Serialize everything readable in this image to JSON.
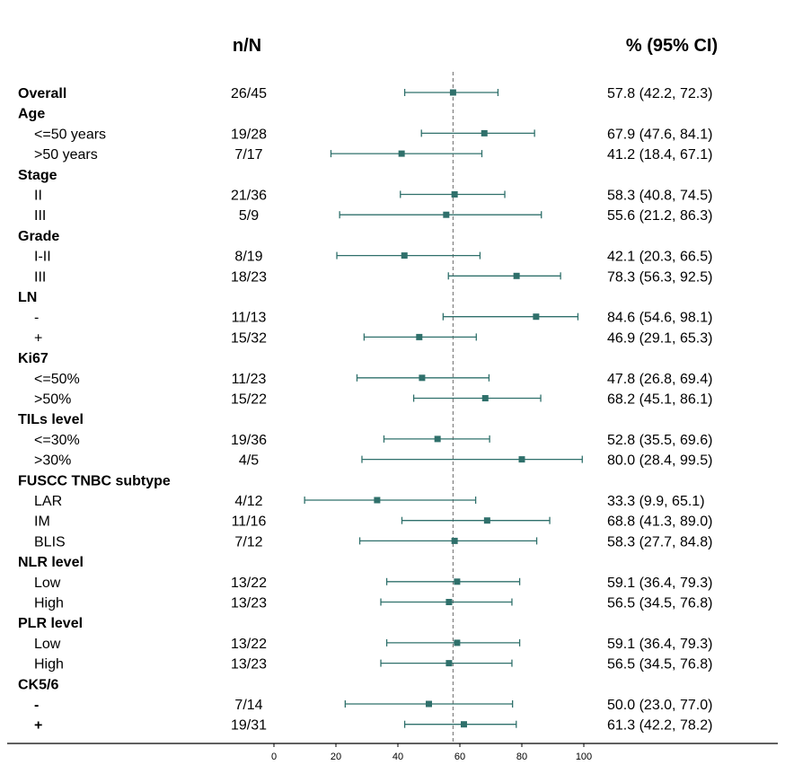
{
  "chart_data": {
    "type": "forest",
    "columns": {
      "n_header": "n/N",
      "ci_header": "% (95% CI)"
    },
    "x_axis": {
      "ticks": [
        "0",
        "20",
        "40",
        "60",
        "80",
        "100"
      ],
      "range": [
        0,
        100
      ]
    },
    "reference_line": 57.8,
    "marker_color": "#2f706b",
    "rows": [
      {
        "label": "Overall",
        "group": true,
        "n": "26/45",
        "est": 57.8,
        "lo": 42.2,
        "hi": 72.3,
        "ci": "57.8 (42.2, 72.3)"
      },
      {
        "label": "Age",
        "group": true
      },
      {
        "label": "<=50 years",
        "n": "19/28",
        "est": 67.9,
        "lo": 47.6,
        "hi": 84.1,
        "ci": "67.9 (47.6, 84.1)"
      },
      {
        "label": ">50 years",
        "n": "7/17",
        "est": 41.2,
        "lo": 18.4,
        "hi": 67.1,
        "ci": "41.2 (18.4, 67.1)"
      },
      {
        "label": "Stage",
        "group": true
      },
      {
        "label": "II",
        "n": "21/36",
        "est": 58.3,
        "lo": 40.8,
        "hi": 74.5,
        "ci": "58.3 (40.8, 74.5)"
      },
      {
        "label": "III",
        "n": "5/9",
        "est": 55.6,
        "lo": 21.2,
        "hi": 86.3,
        "ci": "55.6 (21.2, 86.3)"
      },
      {
        "label": "Grade",
        "group": true
      },
      {
        "label": "I-II",
        "n": "8/19",
        "est": 42.1,
        "lo": 20.3,
        "hi": 66.5,
        "ci": "42.1 (20.3, 66.5)"
      },
      {
        "label": "III",
        "n": "18/23",
        "est": 78.3,
        "lo": 56.3,
        "hi": 92.5,
        "ci": "78.3 (56.3, 92.5)"
      },
      {
        "label": "LN",
        "group": true
      },
      {
        "label": "-",
        "n": "11/13",
        "est": 84.6,
        "lo": 54.6,
        "hi": 98.1,
        "ci": "84.6 (54.6, 98.1)"
      },
      {
        "label": "+",
        "n": "15/32",
        "est": 46.9,
        "lo": 29.1,
        "hi": 65.3,
        "ci": "46.9 (29.1, 65.3)"
      },
      {
        "label": "Ki67",
        "group": true
      },
      {
        "label": "<=50%",
        "n": "11/23",
        "est": 47.8,
        "lo": 26.8,
        "hi": 69.4,
        "ci": "47.8 (26.8, 69.4)"
      },
      {
        "label": ">50%",
        "n": "15/22",
        "est": 68.2,
        "lo": 45.1,
        "hi": 86.1,
        "ci": "68.2 (45.1, 86.1)"
      },
      {
        "label": "TILs level",
        "group": true
      },
      {
        "label": "<=30%",
        "n": "19/36",
        "est": 52.8,
        "lo": 35.5,
        "hi": 69.6,
        "ci": "52.8 (35.5, 69.6)"
      },
      {
        "label": ">30%",
        "n": "4/5",
        "est": 80.0,
        "lo": 28.4,
        "hi": 99.5,
        "ci": "80.0 (28.4, 99.5)"
      },
      {
        "label": "FUSCC TNBC subtype",
        "group": true
      },
      {
        "label": "LAR",
        "n": "4/12",
        "est": 33.3,
        "lo": 9.9,
        "hi": 65.1,
        "ci": "33.3 (9.9, 65.1)"
      },
      {
        "label": "IM",
        "n": "11/16",
        "est": 68.8,
        "lo": 41.3,
        "hi": 89.0,
        "ci": "68.8 (41.3, 89.0)"
      },
      {
        "label": "BLIS",
        "n": "7/12",
        "est": 58.3,
        "lo": 27.7,
        "hi": 84.8,
        "ci": "58.3 (27.7, 84.8)"
      },
      {
        "label": "NLR level",
        "group": true
      },
      {
        "label": "Low",
        "n": "13/22",
        "est": 59.1,
        "lo": 36.4,
        "hi": 79.3,
        "ci": "59.1 (36.4, 79.3)"
      },
      {
        "label": "High",
        "n": "13/23",
        "est": 56.5,
        "lo": 34.5,
        "hi": 76.8,
        "ci": "56.5 (34.5, 76.8)"
      },
      {
        "label": "PLR level",
        "group": true
      },
      {
        "label": "Low",
        "n": "13/22",
        "est": 59.1,
        "lo": 36.4,
        "hi": 79.3,
        "ci": "59.1 (36.4, 79.3)"
      },
      {
        "label": "High",
        "n": "13/23",
        "est": 56.5,
        "lo": 34.5,
        "hi": 76.8,
        "ci": "56.5 (34.5, 76.8)"
      },
      {
        "label": "CK5/6",
        "group": true
      },
      {
        "label": "-",
        "bold": true,
        "n": "7/14",
        "est": 50.0,
        "lo": 23.0,
        "hi": 77.0,
        "ci": "50.0 (23.0, 77.0)"
      },
      {
        "label": "+",
        "bold": true,
        "n": "19/31",
        "est": 61.3,
        "lo": 42.2,
        "hi": 78.2,
        "ci": "61.3 (42.2, 78.2)"
      }
    ]
  }
}
